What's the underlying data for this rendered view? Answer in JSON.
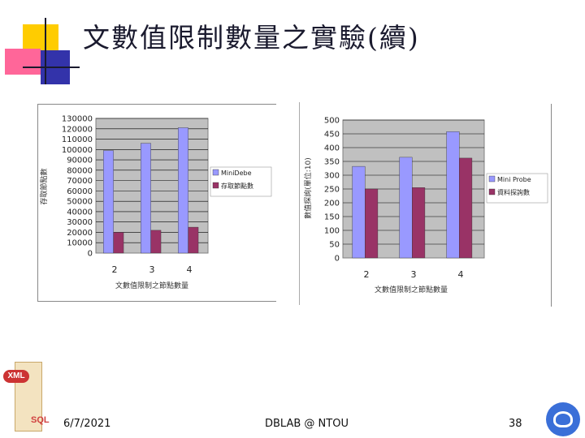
{
  "slide": {
    "title": "文數值限制數量之實驗(續)",
    "footer_date": "6/7/2021",
    "footer_center": "DBLAB @ NTOU",
    "page_number": "38",
    "logo_left_text": "SQL",
    "logo_left_badge": "XML"
  },
  "colors": {
    "series1": "#9999ff",
    "series2": "#993366",
    "plot_bg": "#c0c0c0",
    "accent_yellow": "#ffcc00",
    "accent_pink": "#ff6699",
    "accent_blue": "#3333aa",
    "logo_blue": "#3a6fd8"
  },
  "chart_data": [
    {
      "type": "bar",
      "categories": [
        "2",
        "3",
        "4"
      ],
      "series": [
        {
          "name": "MiniDebe",
          "values": [
            99000,
            106000,
            121000
          ]
        },
        {
          "name": "存取節點數",
          "values": [
            20000,
            22000,
            25000
          ]
        }
      ],
      "ylim": [
        0,
        130000
      ],
      "yticks": [
        "130000",
        "120000",
        "110000",
        "100000",
        "90000",
        "80000",
        "70000",
        "60000",
        "50000",
        "40000",
        "30000",
        "20000",
        "10000",
        "0"
      ],
      "xlabel": "文數值限制之節點數量",
      "ylabel": "存取節點數",
      "grid": true,
      "legend": "right"
    },
    {
      "type": "bar",
      "categories": [
        "2",
        "3",
        "4"
      ],
      "series": [
        {
          "name": "Mini Probe",
          "values": [
            332,
            365,
            458
          ]
        },
        {
          "name": "資料探詢數",
          "values": [
            250,
            255,
            362
          ]
        }
      ],
      "ylim": [
        0,
        500
      ],
      "yticks": [
        "500",
        "450",
        "400",
        "350",
        "300",
        "250",
        "200",
        "150",
        "100",
        "50",
        "0"
      ],
      "xlabel": "文數值限制之節點數量",
      "ylabel": "數值探詢(單位:10)",
      "grid": true,
      "legend": "right"
    }
  ]
}
